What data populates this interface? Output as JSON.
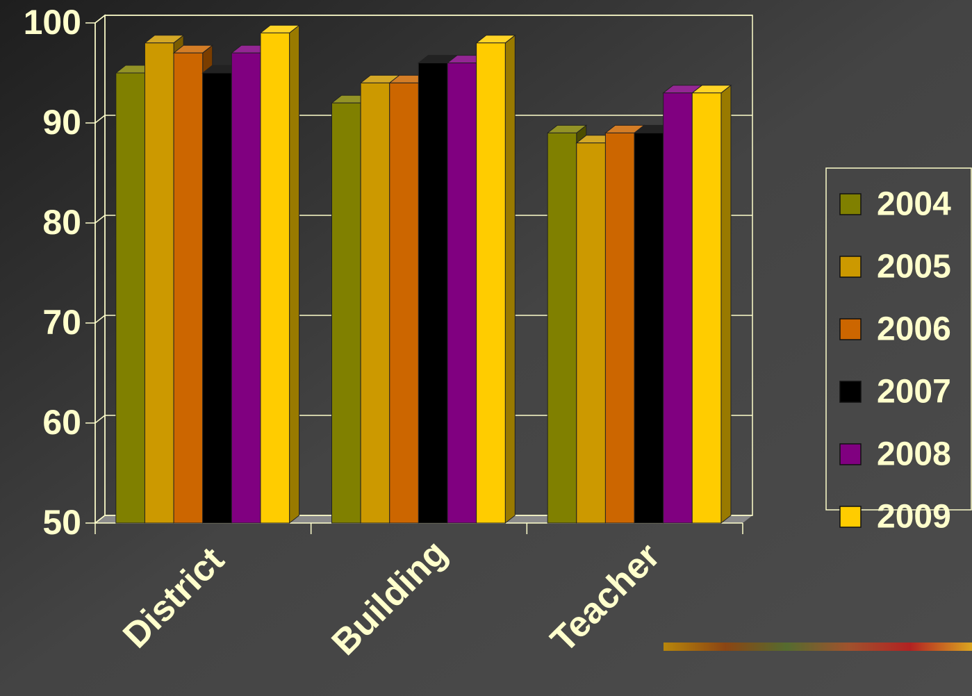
{
  "chart_data": {
    "type": "bar3d",
    "categories": [
      "District",
      "Building",
      "Teacher"
    ],
    "series": [
      {
        "name": "2004",
        "color": "#808000",
        "values": [
          95,
          92,
          89
        ]
      },
      {
        "name": "2005",
        "color": "#cc9900",
        "values": [
          98,
          94,
          88
        ]
      },
      {
        "name": "2006",
        "color": "#cc6600",
        "values": [
          97,
          94,
          89
        ]
      },
      {
        "name": "2007",
        "color": "#000000",
        "values": [
          95,
          96,
          89
        ]
      },
      {
        "name": "2008",
        "color": "#800080",
        "values": [
          97,
          96,
          93
        ]
      },
      {
        "name": "2009",
        "color": "#ffcc00",
        "values": [
          99,
          98,
          93
        ]
      }
    ],
    "ylim": [
      50,
      100
    ],
    "yticks": [
      50,
      60,
      70,
      80,
      90,
      100
    ],
    "grid": true,
    "legend": "right"
  }
}
